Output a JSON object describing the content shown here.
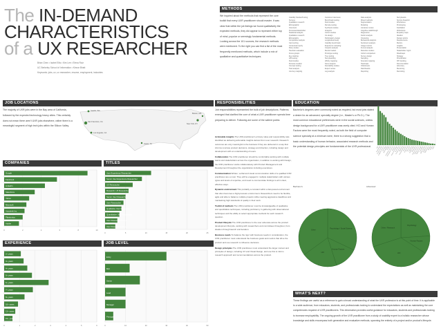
{
  "title": {
    "line1_a": "The ",
    "line1_b": "IN-DEMAND",
    "line2": "CHARACTERISTICS",
    "line3_a": "of a ",
    "line3_b": "UX RESEARCHER"
  },
  "credits": {
    "line1": "Brian Chen • Isabel Ellis • Kim Lee • Elena Ruiz",
    "line2": "UC Berkeley School of Information • Kinnar Bhatt",
    "line3": "Keywords: jobs, ux, ux researcher, resume, employment, industries"
  },
  "sections": {
    "methods": "METHODS",
    "jobloc": "JOB LOCATIONS",
    "resp": "RESPONSIBILITIES",
    "edu": "EDUCATION",
    "companies": "COMPANIES",
    "titles": "TITLES",
    "experience": "EXPERIENCE",
    "joblevel": "JOB LEVEL",
    "whats_next": "WHAT'S NEXT?"
  },
  "methods_text": "We inquired about the methods that represent the core toolkit that every UXR practitioner should master. It was clear that within the job listings we found qualitatively the expected methods, they did appear to represent either top of mind, popular or seemingly fundamental methods. Looking across the 101 sources, the research methods were mentioned. To the right you can find a list of the most frequently mentioned methods, which include a mix of qualitative and quantitative techniques.",
  "methods_cols": [
    [
      "Usability Studies/Testing",
      "Surveys",
      "Qualitative research",
      "Ethnographic",
      "Interviews",
      "Personas/stakeholder",
      "Statistical analysis",
      "Qualitative research",
      "Ethnography",
      "Competitive analysis",
      "Card sorting",
      "Contextual inquiry",
      "Diary studies",
      "Heuristic evaluation",
      "Focus groups",
      "Eye tracking",
      "A/B testing",
      "Field studies",
      "Persona creation",
      "Concept testing",
      "Task analysis",
      "Journey mapping"
    ],
    [
      "Customer interviews",
      "Benchmark testing",
      "Field studies",
      "Remote testing",
      "Synthesis studies",
      "Analytics",
      "Cohort studies",
      "Co-design",
      "Participatory design",
      "Longitudinal study",
      "Usability benchmark",
      "Experience sampling",
      "Conjoint analysis",
      "Mental models",
      "Prototype testing",
      "Tree testing",
      "Storyboarding",
      "Affinity mapping",
      "Kano analysis",
      "Desirability studies",
      "Expert review",
      "Log analysis"
    ],
    [
      "Data analysis",
      "Mixed methods",
      "Segmentation",
      "Modeling",
      "Literature review",
      "Cognitive walkthrough",
      "Regression",
      "Factor analysis",
      "Clustering",
      "Behavioral analytics",
      "Sentiment analysis",
      "Usage metrics",
      "Funnel analysis",
      "Retention studies",
      "Cohort comparison",
      "Survey design",
      "Sampling",
      "Scenario mapping",
      "Heatmaps",
      "Clickstream",
      "Dashboards",
      "Reporting"
    ],
    [
      "Storyboards",
      "Service blueprint",
      "Wireframes",
      "Prototyping",
      "Facilitation",
      "Workshops",
      "Empathy maps",
      "Ideation",
      "Design sprints",
      "Requirements",
      "Metrics",
      "Insights",
      "Presentation",
      "Stakeholder mgmt",
      "Roadmaps",
      "Strategy",
      "Prioritization",
      "KPI tracking",
      "Documentation",
      "Advocacy",
      "Mentoring",
      "Recruiting"
    ]
  ],
  "jobloc_text": "The majority of UXR jobs were in the Bay area of California, followed by the expected technology heavy cities. This certainly does not mean there aren't UXR jobs elsewhere, rather there is a meaningful segment of high tech jobs within the Silicon Valley.",
  "map_labels": [
    "San Francisco, CA",
    "Seattle, WA",
    "New York, NY",
    "Los Angeles, CA",
    "Boston, MA",
    "Austin, TX"
  ],
  "resp_intro": "Job responsibilities represented the bulk of job descriptions. Patterns emerged that clarified the core of what a UXR practitioner spends time preparing to deliver. Following are some of the salient points:",
  "resp_items": [
    {
      "k": "Actionable insights",
      "v": "The UXR practitioner's primary value and responsibility was identified as delivering actionable insights derived from user research. Research outcomes are only meaningful to the business if they are delivered in a way that informs concrete product decisions, strategy and direction, including design and development with an understanding of users."
    },
    {
      "k": "Collaboration",
      "v": "The UXR practitioner should be comfortable working with multiple teams and stakeholders across the organization, in addition to working with Design, the UXR practitioner works collaboratively with Product Management and Development throughout the organization including executives."
    },
    {
      "k": "Communication",
      "v": "Written, verbal and visual communication skills of a qualified UXR practitioner are a must. They will be engaged in multiple stakeholders with various types and levels of expertise, and need to communicate findings to all in clear, effective ways."
    },
    {
      "k": "Dynamic environment",
      "v": "This probably a constant within a fast-paced environment that often becomes a high-pressure environment. Researchers need to be flexible, agile and able to balance multiple projects while meeting aggressive deadlines and maintaining high standards of quality in their work."
    },
    {
      "k": "Toolkit of methods",
      "v": "The UXR practitioner must be knowledgeable of qualitative and quantitative techniques, including proficiency in gathering with observational techniques and the ability to select appropriate methods for each research question."
    },
    {
      "k": "Product lifecycle",
      "v": "The UXR practitioner is the user advocate across the product development lifecycle, working with researchers and committees throughout, from ideation through launch and iteration."
    },
    {
      "k": "Business needs",
      "v": "To balance the rigor with business needs in consideration, the UXR practitioner must understand the business goals and metrics that drive the product and use research to influence decisions."
    },
    {
      "k": "Design principles",
      "v": "The UXR practitioner must understand the larger context and principles of design, including UX and Visual Design, and use this to inform research approach and recommendations across the product."
    }
  ],
  "edu_text": "Bachelor's degrees were commonly noted as required, but most jobs stated a desire for an advanced, specialty degree (i.e., Master's or Ph.D.). The most common educational preferences were in the social sciences, unless design background for a UXR practitioner was rarely cited. HCI and Human Factors were the most frequently noted, as both the field of computer science specialty at a minimum were, there is a strong suggestion that a basic understanding of human behavior, associated research methods and the potential design principles are fundamentals of the UXR professional.",
  "edu_bars": [
    100,
    88,
    83,
    78,
    72,
    60,
    55,
    50,
    45,
    40,
    36,
    32,
    29,
    26,
    23,
    20,
    18,
    16,
    14,
    13,
    12,
    11,
    10,
    9,
    8,
    7,
    6,
    5,
    4,
    4,
    3
  ],
  "edu_bar_labels": [
    "HCI",
    "Psychology",
    "Human Factors",
    "Cognitive Science",
    "Sociology",
    "Anthropology",
    "Design",
    "Computer Science",
    "Information Science",
    "Statistics",
    "Interaction Design",
    "Economics",
    "Communication",
    "Marketing",
    "Industrial Design",
    "Business",
    "Engineering",
    "Education",
    "Linguistics",
    "Public Health",
    "Philosophy",
    "Political Science",
    "Library Science",
    "Graphic Design",
    "Journalism",
    "Media Studies",
    "Architecture",
    "Mathematics",
    "Biology",
    "History",
    "Other"
  ],
  "pie1": {
    "title": "Bachelor's",
    "slices": [
      {
        "label": "Psychology / Social Science",
        "value": 32
      },
      {
        "label": "Human Factors",
        "value": 13
      },
      {
        "label": "HCI",
        "value": 20
      },
      {
        "label": "Other",
        "value": 35
      }
    ]
  },
  "pie2": {
    "title": "Advanced",
    "slices": [
      {
        "label": "Psychology",
        "value": 24
      },
      {
        "label": "Human Factors",
        "value": 10
      },
      {
        "label": "HCI",
        "value": 36
      },
      {
        "label": "Other / Research",
        "value": 30
      }
    ]
  },
  "companies": {
    "labels": [
      "Google",
      "Facebook",
      "LinkedIn",
      "Salesforce",
      "Yahoo",
      "Microsoft",
      "Autodesk Inc.",
      "Plantronics",
      "Adobe"
    ],
    "values": [
      90,
      57,
      44,
      33,
      27,
      24,
      22,
      20,
      16
    ],
    "ticks": [
      "0",
      "2",
      "4",
      "6",
      "8",
      "10"
    ]
  },
  "titles": {
    "labels": [
      "User Experience Researcher",
      "Senior User Experience Researcher",
      "UX Researcher",
      "Research, UX Researcher",
      "Senior User Researcher",
      "User Researcher",
      "Qualitative User Researcher",
      "Quantitative User Researcher",
      "User Research Manager",
      "User Research Analyst"
    ],
    "values": [
      45,
      36,
      27,
      23,
      20,
      18,
      16,
      14,
      12,
      10
    ],
    "ticks": [
      "0",
      "5",
      "10",
      "15",
      "20",
      "25"
    ]
  },
  "experience": {
    "labels": [
      "2+ years",
      "3+ years",
      "4+ years",
      "5+ years",
      "6+ years",
      "7+ years",
      "8+ years",
      "10+ years",
      "12+ years",
      "15+ years"
    ],
    "values": [
      18,
      21,
      25,
      30,
      48,
      31,
      22,
      15,
      12,
      9
    ],
    "ticks": [
      "0",
      "1",
      "2",
      "3",
      "4",
      "5",
      "6"
    ]
  },
  "joblevel": {
    "labels": [
      "Entry",
      "Mid",
      "Senior",
      "Lead",
      "Manager",
      "Principal"
    ],
    "values": [
      60,
      24,
      34,
      20,
      20,
      8
    ],
    "ticks": [
      "0",
      "10",
      "20",
      "30",
      "40",
      "50"
    ]
  },
  "whats_next_text": "These findings are useful as a reference to gain a broad understanding of what the UXR profession is at this point of time. It is applicable to a wide audience, from educators, students, and professionals looking to understand the expectations as well as maintaining the core competencies required of UXR practitioners. This information provides useful guidance for educators, students and professionals looking to increase employability. The ongoing growth of the UXR practitioner from a study of usability expert to a holistic researcher whose knowledge and skills encompass both generative and evaluative methods, spanning the entirety of a project and/or product's lifecycle.",
  "colors": {
    "accent": "#43853d",
    "header": "#3a3a3a",
    "title_gray": "#b5b5b5",
    "title_dark": "#2d2d2d"
  }
}
